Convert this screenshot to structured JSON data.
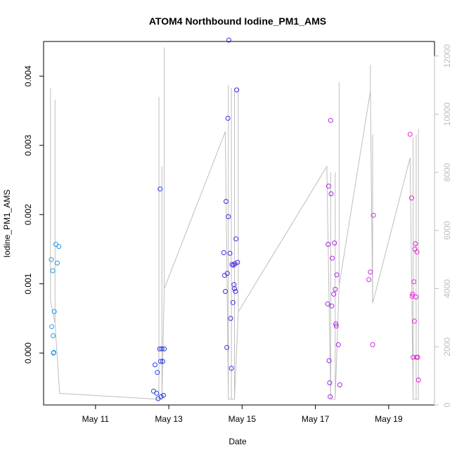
{
  "chart_data": {
    "type": "scatter",
    "title": "ATOM4 Northbound Iodine_PM1_AMS",
    "xlabel": "Date",
    "ylabel": "Iodine_PM1_AMS",
    "y2label": "",
    "x_ticks": [
      "May 11",
      "May 13",
      "May 15",
      "May 17",
      "May 19"
    ],
    "y_ticks": [
      "0.000",
      "0.001",
      "0.002",
      "0.003",
      "0.004"
    ],
    "y2_ticks": [
      "0",
      "2000",
      "4000",
      "6000",
      "8000",
      "10000",
      "12000"
    ],
    "xlim": [
      "2016-05-09T14:00",
      "2016-05-20T06:00"
    ],
    "ylim": [
      -0.00075,
      0.0045
    ],
    "y2lim": [
      0,
      12500
    ],
    "y2_scale_label_color": "#bebebe",
    "grid": false,
    "legend": "none",
    "color_scale": "marker colour shifts over time from sky blue through blue to violet and magenta",
    "colors": {
      "line": "#bebebe",
      "early": "#1e9fe6",
      "middle": "#2222ff",
      "late": "#e020c8"
    },
    "points": [
      {
        "x": "2016-05-09T19:00",
        "y": 0.00135
      },
      {
        "x": "2016-05-09T19:20",
        "y": 0.00038
      },
      {
        "x": "2016-05-09T20:00",
        "y": 0.00119
      },
      {
        "x": "2016-05-09T20:15",
        "y": 0.00025
      },
      {
        "x": "2016-05-09T20:30",
        "y": 0.0
      },
      {
        "x": "2016-05-09T20:40",
        "y": 1e-05
      },
      {
        "x": "2016-05-09T21:00",
        "y": 0.0006
      },
      {
        "x": "2016-05-09T22:00",
        "y": 0.00157
      },
      {
        "x": "2016-05-09T23:00",
        "y": 0.0013
      },
      {
        "x": "2016-05-10T00:00",
        "y": 0.00154
      },
      {
        "x": "2016-05-12T14:00",
        "y": -0.00055
      },
      {
        "x": "2016-05-12T15:00",
        "y": -0.00017
      },
      {
        "x": "2016-05-12T16:00",
        "y": -0.00058
      },
      {
        "x": "2016-05-12T16:30",
        "y": -0.00028
      },
      {
        "x": "2016-05-12T17:00",
        "y": -0.00066
      },
      {
        "x": "2016-05-12T18:00",
        "y": 6e-05
      },
      {
        "x": "2016-05-12T18:20",
        "y": 0.00237
      },
      {
        "x": "2016-05-12T18:40",
        "y": -0.00012
      },
      {
        "x": "2016-05-12T19:00",
        "y": -0.00063
      },
      {
        "x": "2016-05-12T19:30",
        "y": 6e-05
      },
      {
        "x": "2016-05-12T20:00",
        "y": -0.00012
      },
      {
        "x": "2016-05-12T20:30",
        "y": -0.00061
      },
      {
        "x": "2016-05-12T21:00",
        "y": 6e-05
      },
      {
        "x": "2016-05-14T12:00",
        "y": 0.00145
      },
      {
        "x": "2016-05-14T12:30",
        "y": 0.00112
      },
      {
        "x": "2016-05-14T13:00",
        "y": 0.00089
      },
      {
        "x": "2016-05-14T13:30",
        "y": 0.00219
      },
      {
        "x": "2016-05-14T14:00",
        "y": 8e-05
      },
      {
        "x": "2016-05-14T14:20",
        "y": 0.00115
      },
      {
        "x": "2016-05-14T14:40",
        "y": 0.00339
      },
      {
        "x": "2016-05-14T15:00",
        "y": 0.00197
      },
      {
        "x": "2016-05-14T15:20",
        "y": 0.00452
      },
      {
        "x": "2016-05-14T16:00",
        "y": 0.00144
      },
      {
        "x": "2016-05-14T16:30",
        "y": 0.0005
      },
      {
        "x": "2016-05-14T17:00",
        "y": -0.00022
      },
      {
        "x": "2016-05-14T17:30",
        "y": 0.00128
      },
      {
        "x": "2016-05-14T18:00",
        "y": 0.00073
      },
      {
        "x": "2016-05-14T18:20",
        "y": 0.00127
      },
      {
        "x": "2016-05-14T18:40",
        "y": 0.00099
      },
      {
        "x": "2016-05-14T19:00",
        "y": 0.00093
      },
      {
        "x": "2016-05-14T19:20",
        "y": 0.00129
      },
      {
        "x": "2016-05-14T19:40",
        "y": 0.00089
      },
      {
        "x": "2016-05-14T20:00",
        "y": 0.00165
      },
      {
        "x": "2016-05-14T20:30",
        "y": 0.0038
      },
      {
        "x": "2016-05-14T21:00",
        "y": 0.00131
      },
      {
        "x": "2016-05-17T08:00",
        "y": 0.00071
      },
      {
        "x": "2016-05-17T08:20",
        "y": 0.00157
      },
      {
        "x": "2016-05-17T08:40",
        "y": 0.00241
      },
      {
        "x": "2016-05-17T09:00",
        "y": -0.00011
      },
      {
        "x": "2016-05-17T09:20",
        "y": -0.00043
      },
      {
        "x": "2016-05-17T09:40",
        "y": -0.00063
      },
      {
        "x": "2016-05-17T10:00",
        "y": 0.00336
      },
      {
        "x": "2016-05-17T10:20",
        "y": 0.0023
      },
      {
        "x": "2016-05-17T10:40",
        "y": 0.00068
      },
      {
        "x": "2016-05-17T11:00",
        "y": 0.00137
      },
      {
        "x": "2016-05-17T12:00",
        "y": 0.00085
      },
      {
        "x": "2016-05-17T12:30",
        "y": 0.00159
      },
      {
        "x": "2016-05-17T13:00",
        "y": 0.00092
      },
      {
        "x": "2016-05-17T13:20",
        "y": 0.00042
      },
      {
        "x": "2016-05-17T13:40",
        "y": 0.00039
      },
      {
        "x": "2016-05-17T14:00",
        "y": 0.00113
      },
      {
        "x": "2016-05-17T15:00",
        "y": 0.00012
      },
      {
        "x": "2016-05-17T16:00",
        "y": -0.00046
      },
      {
        "x": "2016-05-18T11:00",
        "y": 0.00106
      },
      {
        "x": "2016-05-18T12:00",
        "y": 0.00117
      },
      {
        "x": "2016-05-18T13:30",
        "y": 0.00012
      },
      {
        "x": "2016-05-18T14:00",
        "y": 0.00199
      },
      {
        "x": "2016-05-19T14:00",
        "y": 0.00316
      },
      {
        "x": "2016-05-19T15:00",
        "y": 0.00224
      },
      {
        "x": "2016-05-19T15:20",
        "y": 0.00082
      },
      {
        "x": "2016-05-19T15:40",
        "y": 0.00085
      },
      {
        "x": "2016-05-19T16:00",
        "y": -6e-05
      },
      {
        "x": "2016-05-19T16:30",
        "y": 0.00103
      },
      {
        "x": "2016-05-19T16:50",
        "y": 0.00046
      },
      {
        "x": "2016-05-19T17:10",
        "y": 0.0015
      },
      {
        "x": "2016-05-19T17:30",
        "y": 0.00158
      },
      {
        "x": "2016-05-19T17:50",
        "y": 0.00081
      },
      {
        "x": "2016-05-19T18:10",
        "y": -6e-05
      },
      {
        "x": "2016-05-19T18:30",
        "y": 0.00146
      },
      {
        "x": "2016-05-19T19:00",
        "y": -6e-05
      },
      {
        "x": "2016-05-19T19:30",
        "y": -0.00039
      }
    ],
    "line_y2_envelope": [
      {
        "x": "2016-05-09T18:30",
        "y2": [
          3600,
          10900
        ]
      },
      {
        "x": "2016-05-09T21:30",
        "y2": [
          2800,
          10500
        ]
      },
      {
        "x": "2016-05-10T00:30",
        "y2": [
          400,
          400
        ]
      },
      {
        "x": "2016-05-12T16:30",
        "y2": [
          200,
          200
        ]
      },
      {
        "x": "2016-05-12T17:30",
        "y2": [
          200,
          10600
        ]
      },
      {
        "x": "2016-05-12T19:30",
        "y2": [
          200,
          8200
        ]
      },
      {
        "x": "2016-05-12T21:00",
        "y2": [
          4000,
          12300
        ]
      },
      {
        "x": "2016-05-14T13:00",
        "y2": [
          9400,
          9400
        ]
      },
      {
        "x": "2016-05-14T15:00",
        "y2": [
          200,
          11000
        ]
      },
      {
        "x": "2016-05-14T17:00",
        "y2": [
          200,
          10900
        ]
      },
      {
        "x": "2016-05-14T19:00",
        "y2": [
          200,
          10900
        ]
      },
      {
        "x": "2016-05-14T21:30",
        "y2": [
          3200,
          10900
        ]
      },
      {
        "x": "2016-05-17T07:30",
        "y2": [
          8200,
          8200
        ]
      },
      {
        "x": "2016-05-17T10:00",
        "y2": [
          200,
          8000
        ]
      },
      {
        "x": "2016-05-17T13:00",
        "y2": [
          200,
          8000
        ]
      },
      {
        "x": "2016-05-17T15:30",
        "y2": [
          4100,
          11100
        ]
      },
      {
        "x": "2016-05-18T12:00",
        "y2": [
          10800,
          11700
        ]
      },
      {
        "x": "2016-05-18T13:30",
        "y2": [
          3500,
          9300
        ]
      },
      {
        "x": "2016-05-19T14:00",
        "y2": [
          8500,
          8500
        ]
      },
      {
        "x": "2016-05-19T16:00",
        "y2": [
          200,
          9200
        ]
      },
      {
        "x": "2016-05-19T18:00",
        "y2": [
          200,
          9300
        ]
      },
      {
        "x": "2016-05-19T19:30",
        "y2": [
          200,
          9500
        ]
      }
    ]
  }
}
